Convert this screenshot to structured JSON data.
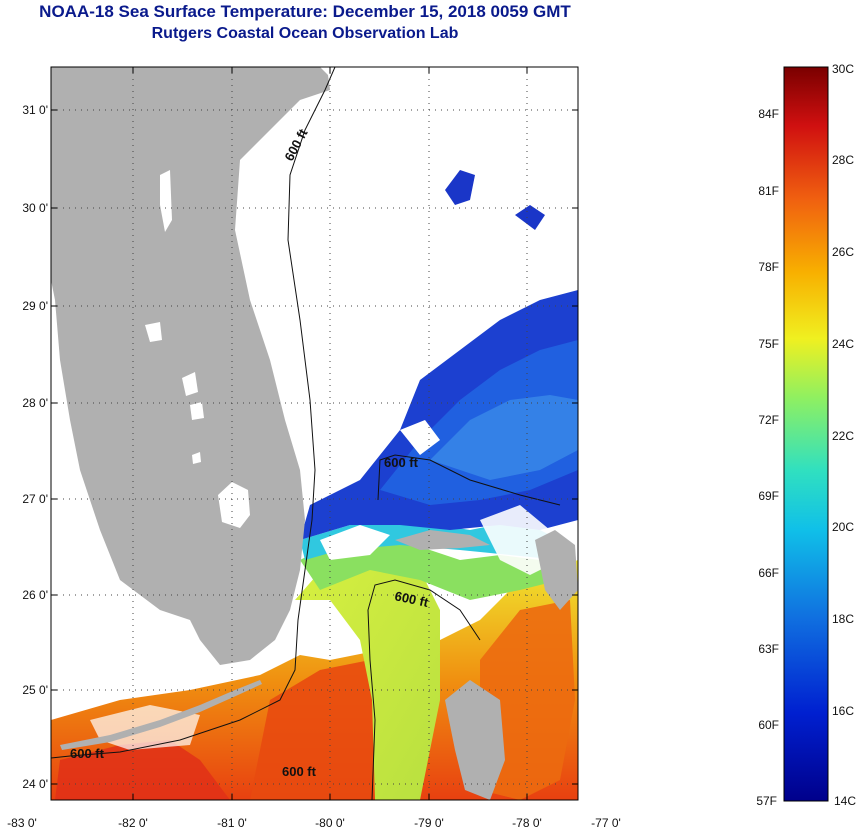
{
  "header": {
    "title": "NOAA-18 Sea Surface Temperature:  December 15, 2018 0059 GMT",
    "subtitle": "Rutgers Coastal Ocean Observation Lab"
  },
  "map": {
    "lat_labels": [
      "31 0'",
      "30 0'",
      "29 0'",
      "28 0'",
      "27 0'",
      "26 0'",
      "25 0'",
      "24 0'"
    ],
    "lon_labels": [
      "-83 0'",
      "-82 0'",
      "-81 0'",
      "-80 0'",
      "-79 0'",
      "-78 0'",
      "-77 0'"
    ],
    "contour_labels": [
      "600 ft",
      "600 ft",
      "600 ft",
      "600 ft",
      "600 ft"
    ],
    "colors": {
      "land": "#b0b0b0",
      "cloud": "#ffffff",
      "cold": "#1030c0",
      "warm": "#f04010"
    }
  },
  "colorbar": {
    "celsius_labels": [
      "30C",
      "28C",
      "26C",
      "24C",
      "22C",
      "20C",
      "18C",
      "16C",
      "14C"
    ],
    "fahrenheit_labels": [
      "84F",
      "81F",
      "78F",
      "75F",
      "72F",
      "69F",
      "66F",
      "63F",
      "60F",
      "57F"
    ],
    "range_c": [
      14,
      30
    ]
  }
}
